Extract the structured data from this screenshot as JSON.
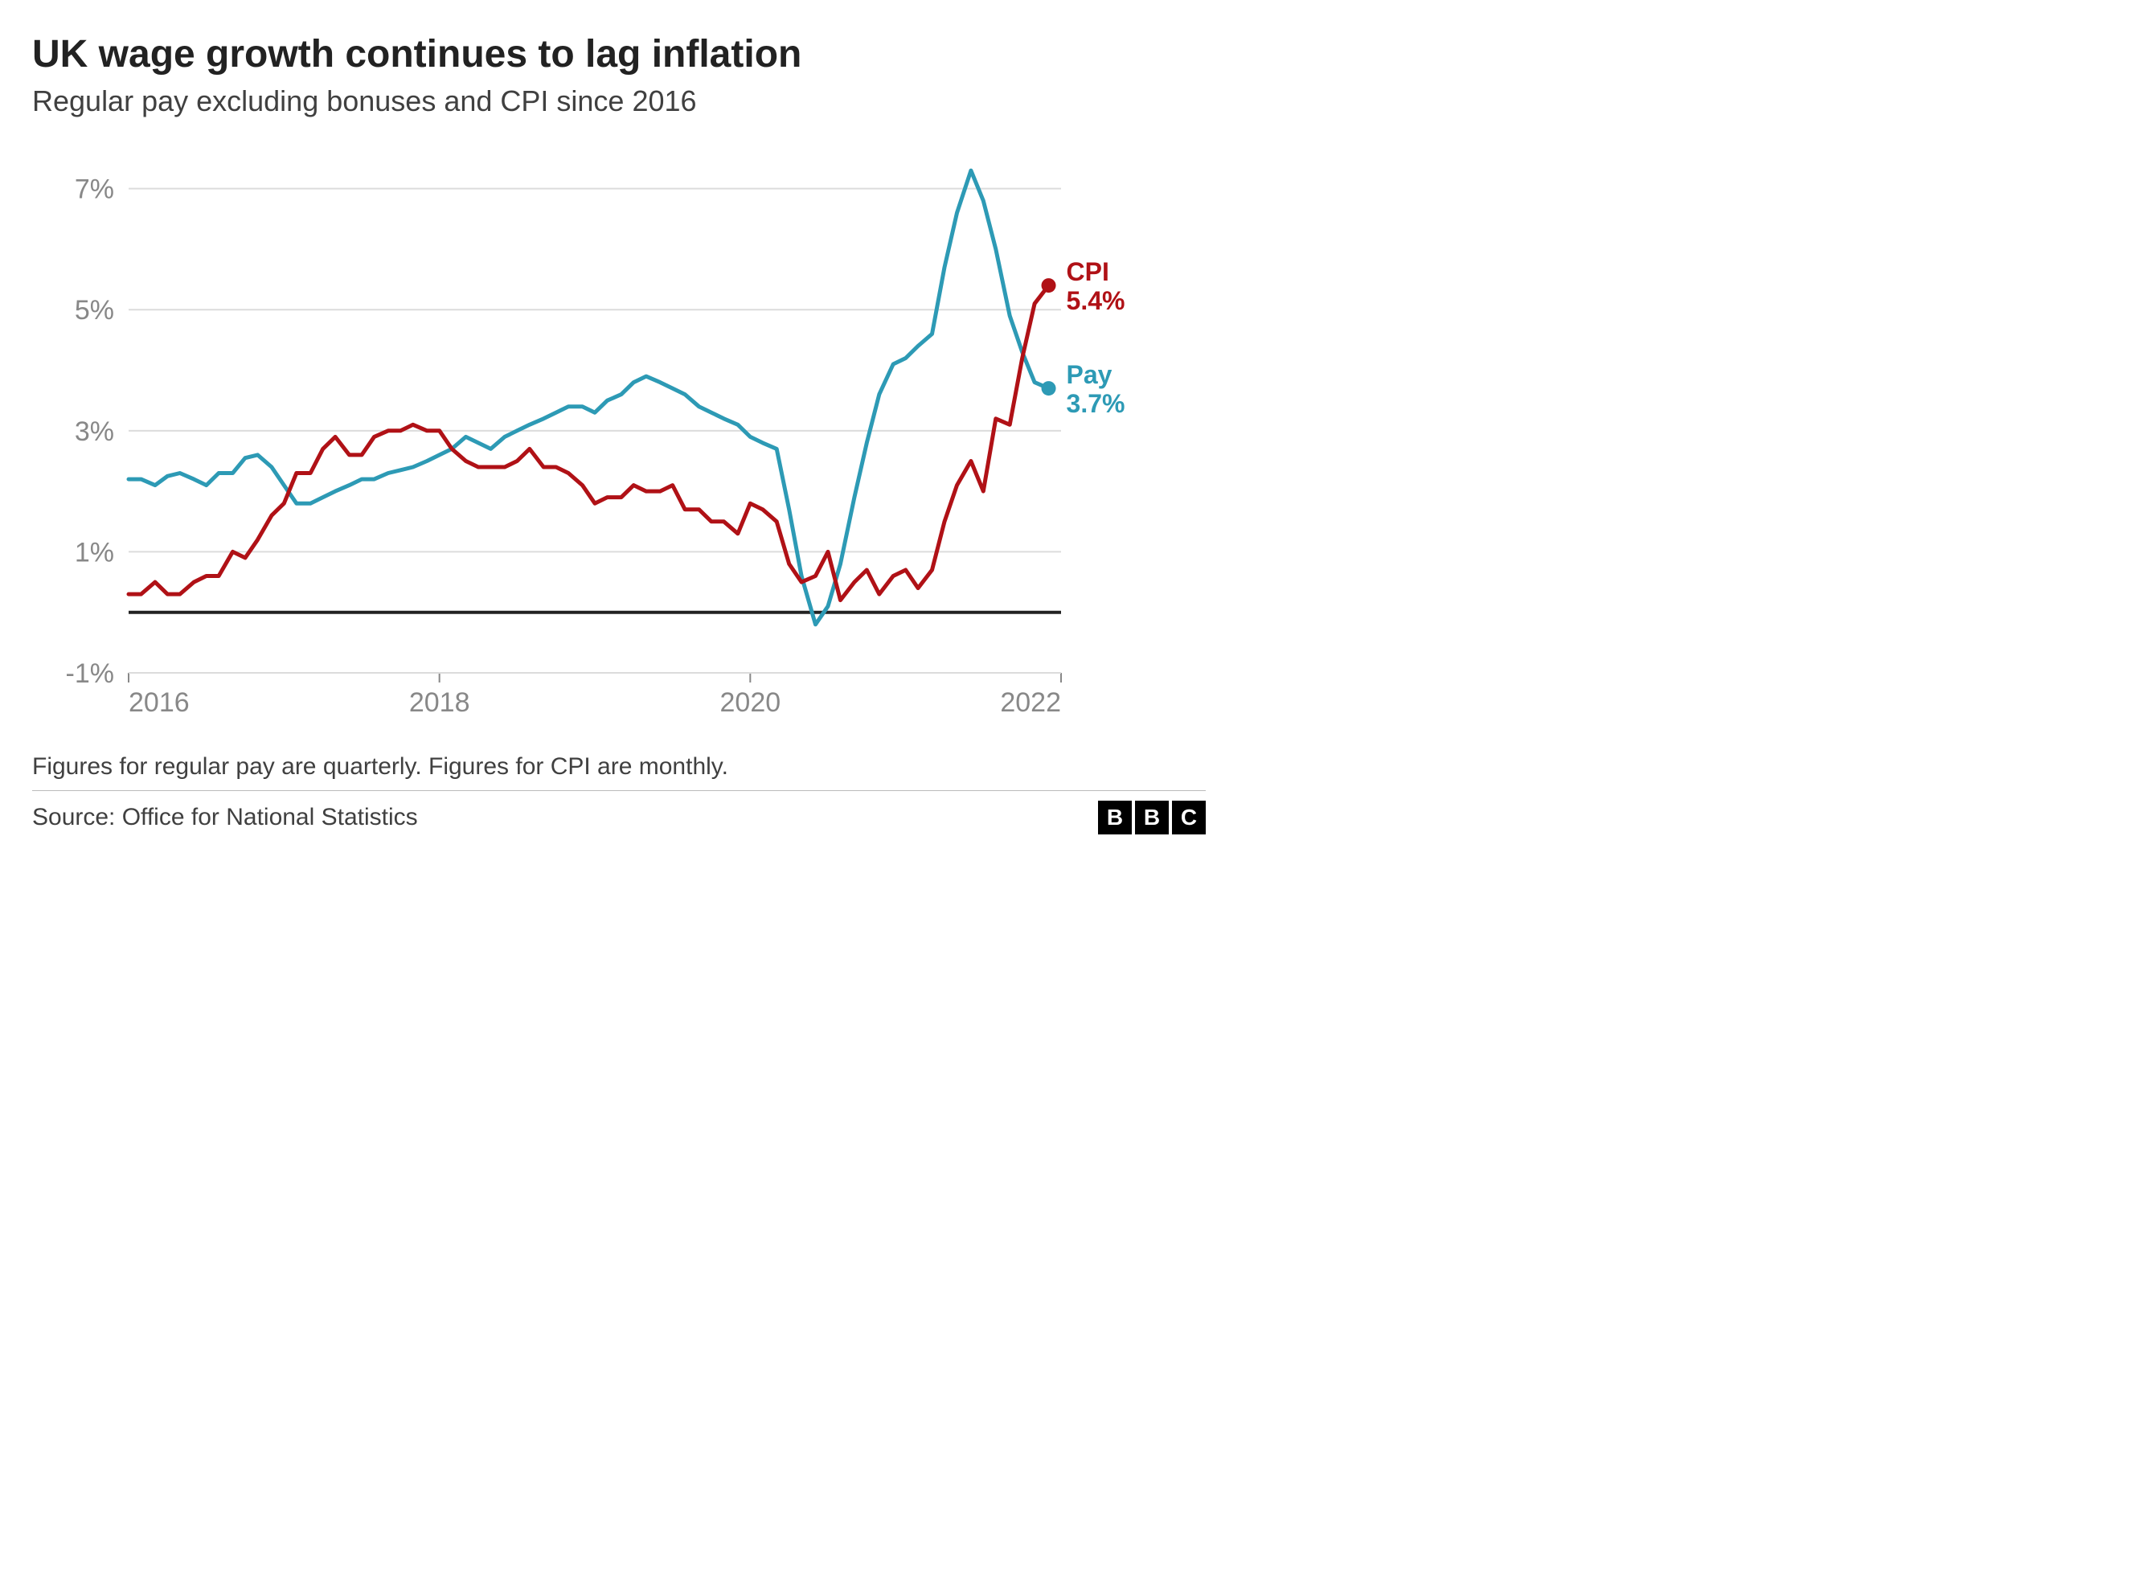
{
  "title": "UK wage growth continues to lag inflation",
  "subtitle": "Regular pay excluding bonuses and CPI since 2016",
  "footnote": "Figures for regular pay are quarterly. Figures for CPI are monthly.",
  "source": "Source: Office for National Statistics",
  "logo_letters": [
    "B",
    "B",
    "C"
  ],
  "chart": {
    "type": "line",
    "background_color": "#ffffff",
    "grid_color": "#dcdcdc",
    "zero_line_color": "#222222",
    "axis_text_color": "#888888",
    "axis_fontsize": 34,
    "label_fontsize": 32,
    "line_width": 5,
    "marker_radius": 9,
    "x": {
      "min": 2016.0,
      "max": 2022.0,
      "ticks": [
        2016,
        2018,
        2020,
        2022
      ],
      "tick_labels": [
        "2016",
        "2018",
        "2020",
        "2022"
      ]
    },
    "y": {
      "min": -1.0,
      "max": 7.5,
      "ticks": [
        -1,
        1,
        3,
        5,
        7
      ],
      "tick_labels": [
        "-1%",
        "1%",
        "3%",
        "5%",
        "7%"
      ]
    },
    "series": [
      {
        "name": "Pay",
        "color": "#2d9ab5",
        "end_label": "Pay",
        "end_value_label": "3.7%",
        "data": [
          [
            2016.0,
            2.2
          ],
          [
            2016.08,
            2.2
          ],
          [
            2016.17,
            2.1
          ],
          [
            2016.25,
            2.25
          ],
          [
            2016.33,
            2.3
          ],
          [
            2016.42,
            2.2
          ],
          [
            2016.5,
            2.1
          ],
          [
            2016.58,
            2.3
          ],
          [
            2016.67,
            2.3
          ],
          [
            2016.75,
            2.55
          ],
          [
            2016.83,
            2.6
          ],
          [
            2016.92,
            2.4
          ],
          [
            2017.0,
            2.1
          ],
          [
            2017.08,
            1.8
          ],
          [
            2017.17,
            1.8
          ],
          [
            2017.25,
            1.9
          ],
          [
            2017.33,
            2.0
          ],
          [
            2017.42,
            2.1
          ],
          [
            2017.5,
            2.2
          ],
          [
            2017.58,
            2.2
          ],
          [
            2017.67,
            2.3
          ],
          [
            2017.75,
            2.35
          ],
          [
            2017.83,
            2.4
          ],
          [
            2017.92,
            2.5
          ],
          [
            2018.0,
            2.6
          ],
          [
            2018.08,
            2.7
          ],
          [
            2018.17,
            2.9
          ],
          [
            2018.25,
            2.8
          ],
          [
            2018.33,
            2.7
          ],
          [
            2018.42,
            2.9
          ],
          [
            2018.5,
            3.0
          ],
          [
            2018.58,
            3.1
          ],
          [
            2018.67,
            3.2
          ],
          [
            2018.75,
            3.3
          ],
          [
            2018.83,
            3.4
          ],
          [
            2018.92,
            3.4
          ],
          [
            2019.0,
            3.3
          ],
          [
            2019.08,
            3.5
          ],
          [
            2019.17,
            3.6
          ],
          [
            2019.25,
            3.8
          ],
          [
            2019.33,
            3.9
          ],
          [
            2019.42,
            3.8
          ],
          [
            2019.5,
            3.7
          ],
          [
            2019.58,
            3.6
          ],
          [
            2019.67,
            3.4
          ],
          [
            2019.75,
            3.3
          ],
          [
            2019.83,
            3.2
          ],
          [
            2019.92,
            3.1
          ],
          [
            2020.0,
            2.9
          ],
          [
            2020.08,
            2.8
          ],
          [
            2020.17,
            2.7
          ],
          [
            2020.25,
            1.7
          ],
          [
            2020.33,
            0.6
          ],
          [
            2020.42,
            -0.2
          ],
          [
            2020.5,
            0.1
          ],
          [
            2020.58,
            0.8
          ],
          [
            2020.67,
            1.9
          ],
          [
            2020.75,
            2.8
          ],
          [
            2020.83,
            3.6
          ],
          [
            2020.92,
            4.1
          ],
          [
            2021.0,
            4.2
          ],
          [
            2021.08,
            4.4
          ],
          [
            2021.17,
            4.6
          ],
          [
            2021.25,
            5.7
          ],
          [
            2021.33,
            6.6
          ],
          [
            2021.42,
            7.3
          ],
          [
            2021.5,
            6.8
          ],
          [
            2021.58,
            6.0
          ],
          [
            2021.67,
            4.9
          ],
          [
            2021.75,
            4.3
          ],
          [
            2021.83,
            3.8
          ],
          [
            2021.92,
            3.7
          ]
        ]
      },
      {
        "name": "CPI",
        "color": "#b01116",
        "end_label": "CPI",
        "end_value_label": "5.4%",
        "data": [
          [
            2016.0,
            0.3
          ],
          [
            2016.08,
            0.3
          ],
          [
            2016.17,
            0.5
          ],
          [
            2016.25,
            0.3
          ],
          [
            2016.33,
            0.3
          ],
          [
            2016.42,
            0.5
          ],
          [
            2016.5,
            0.6
          ],
          [
            2016.58,
            0.6
          ],
          [
            2016.67,
            1.0
          ],
          [
            2016.75,
            0.9
          ],
          [
            2016.83,
            1.2
          ],
          [
            2016.92,
            1.6
          ],
          [
            2017.0,
            1.8
          ],
          [
            2017.08,
            2.3
          ],
          [
            2017.17,
            2.3
          ],
          [
            2017.25,
            2.7
          ],
          [
            2017.33,
            2.9
          ],
          [
            2017.42,
            2.6
          ],
          [
            2017.5,
            2.6
          ],
          [
            2017.58,
            2.9
          ],
          [
            2017.67,
            3.0
          ],
          [
            2017.75,
            3.0
          ],
          [
            2017.83,
            3.1
          ],
          [
            2017.92,
            3.0
          ],
          [
            2018.0,
            3.0
          ],
          [
            2018.08,
            2.7
          ],
          [
            2018.17,
            2.5
          ],
          [
            2018.25,
            2.4
          ],
          [
            2018.33,
            2.4
          ],
          [
            2018.42,
            2.4
          ],
          [
            2018.5,
            2.5
          ],
          [
            2018.58,
            2.7
          ],
          [
            2018.67,
            2.4
          ],
          [
            2018.75,
            2.4
          ],
          [
            2018.83,
            2.3
          ],
          [
            2018.92,
            2.1
          ],
          [
            2019.0,
            1.8
          ],
          [
            2019.08,
            1.9
          ],
          [
            2019.17,
            1.9
          ],
          [
            2019.25,
            2.1
          ],
          [
            2019.33,
            2.0
          ],
          [
            2019.42,
            2.0
          ],
          [
            2019.5,
            2.1
          ],
          [
            2019.58,
            1.7
          ],
          [
            2019.67,
            1.7
          ],
          [
            2019.75,
            1.5
          ],
          [
            2019.83,
            1.5
          ],
          [
            2019.92,
            1.3
          ],
          [
            2020.0,
            1.8
          ],
          [
            2020.08,
            1.7
          ],
          [
            2020.17,
            1.5
          ],
          [
            2020.25,
            0.8
          ],
          [
            2020.33,
            0.5
          ],
          [
            2020.42,
            0.6
          ],
          [
            2020.5,
            1.0
          ],
          [
            2020.58,
            0.2
          ],
          [
            2020.67,
            0.5
          ],
          [
            2020.75,
            0.7
          ],
          [
            2020.83,
            0.3
          ],
          [
            2020.92,
            0.6
          ],
          [
            2021.0,
            0.7
          ],
          [
            2021.08,
            0.4
          ],
          [
            2021.17,
            0.7
          ],
          [
            2021.25,
            1.5
          ],
          [
            2021.33,
            2.1
          ],
          [
            2021.42,
            2.5
          ],
          [
            2021.5,
            2.0
          ],
          [
            2021.58,
            3.2
          ],
          [
            2021.67,
            3.1
          ],
          [
            2021.75,
            4.2
          ],
          [
            2021.83,
            5.1
          ],
          [
            2021.92,
            5.4
          ]
        ]
      }
    ]
  }
}
